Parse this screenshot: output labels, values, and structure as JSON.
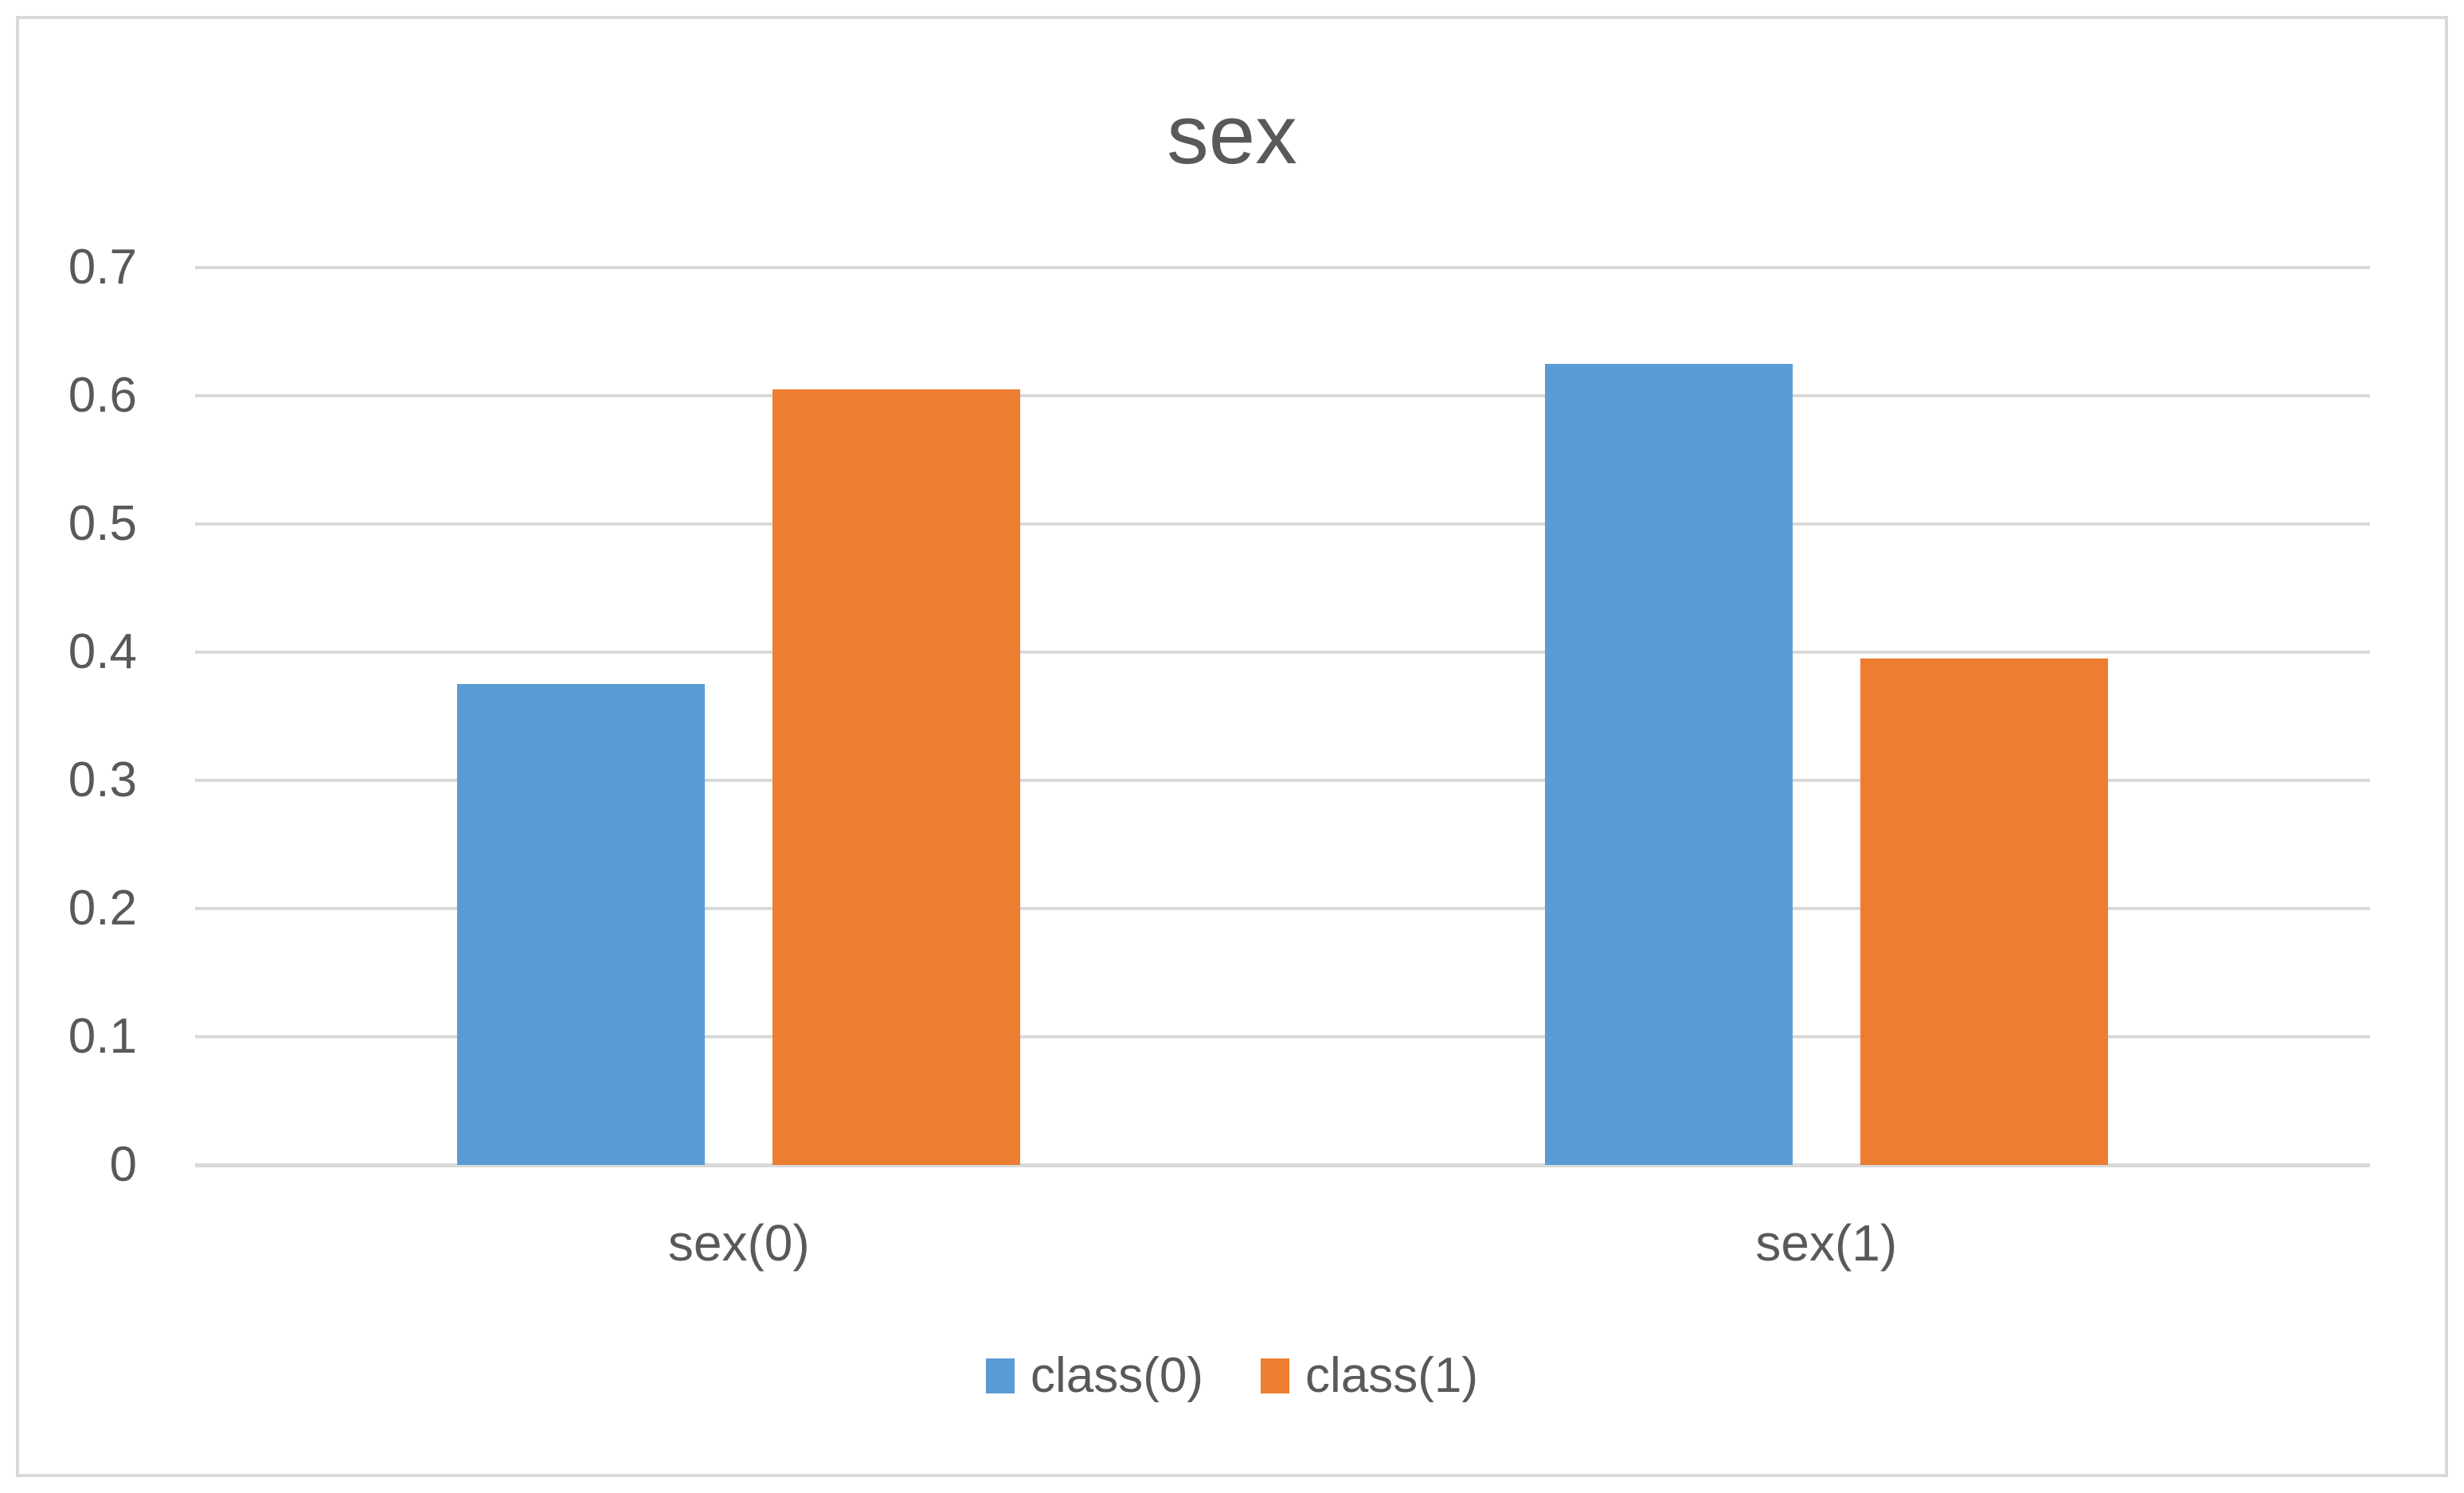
{
  "chart_data": {
    "type": "bar",
    "title": "sex",
    "categories": [
      "sex(0)",
      "sex(1)"
    ],
    "series": [
      {
        "name": "class(0)",
        "color": "#5B9BD5",
        "values": [
          0.375,
          0.625
        ]
      },
      {
        "name": "class(1)",
        "color": "#ED7D31",
        "values": [
          0.605,
          0.395
        ]
      }
    ],
    "ylim": [
      0,
      0.7
    ],
    "ytick_step": 0.1,
    "ytick_labels": [
      "0",
      "0.1",
      "0.2",
      "0.3",
      "0.4",
      "0.5",
      "0.6",
      "0.7"
    ],
    "grid": true,
    "legend_position": "bottom",
    "colors": {
      "text": "#595959",
      "gridline": "#D9D9D9",
      "axis_line": "#D9D9D9",
      "frame_border": "#D9D9D9",
      "background": "#FFFFFF"
    }
  }
}
